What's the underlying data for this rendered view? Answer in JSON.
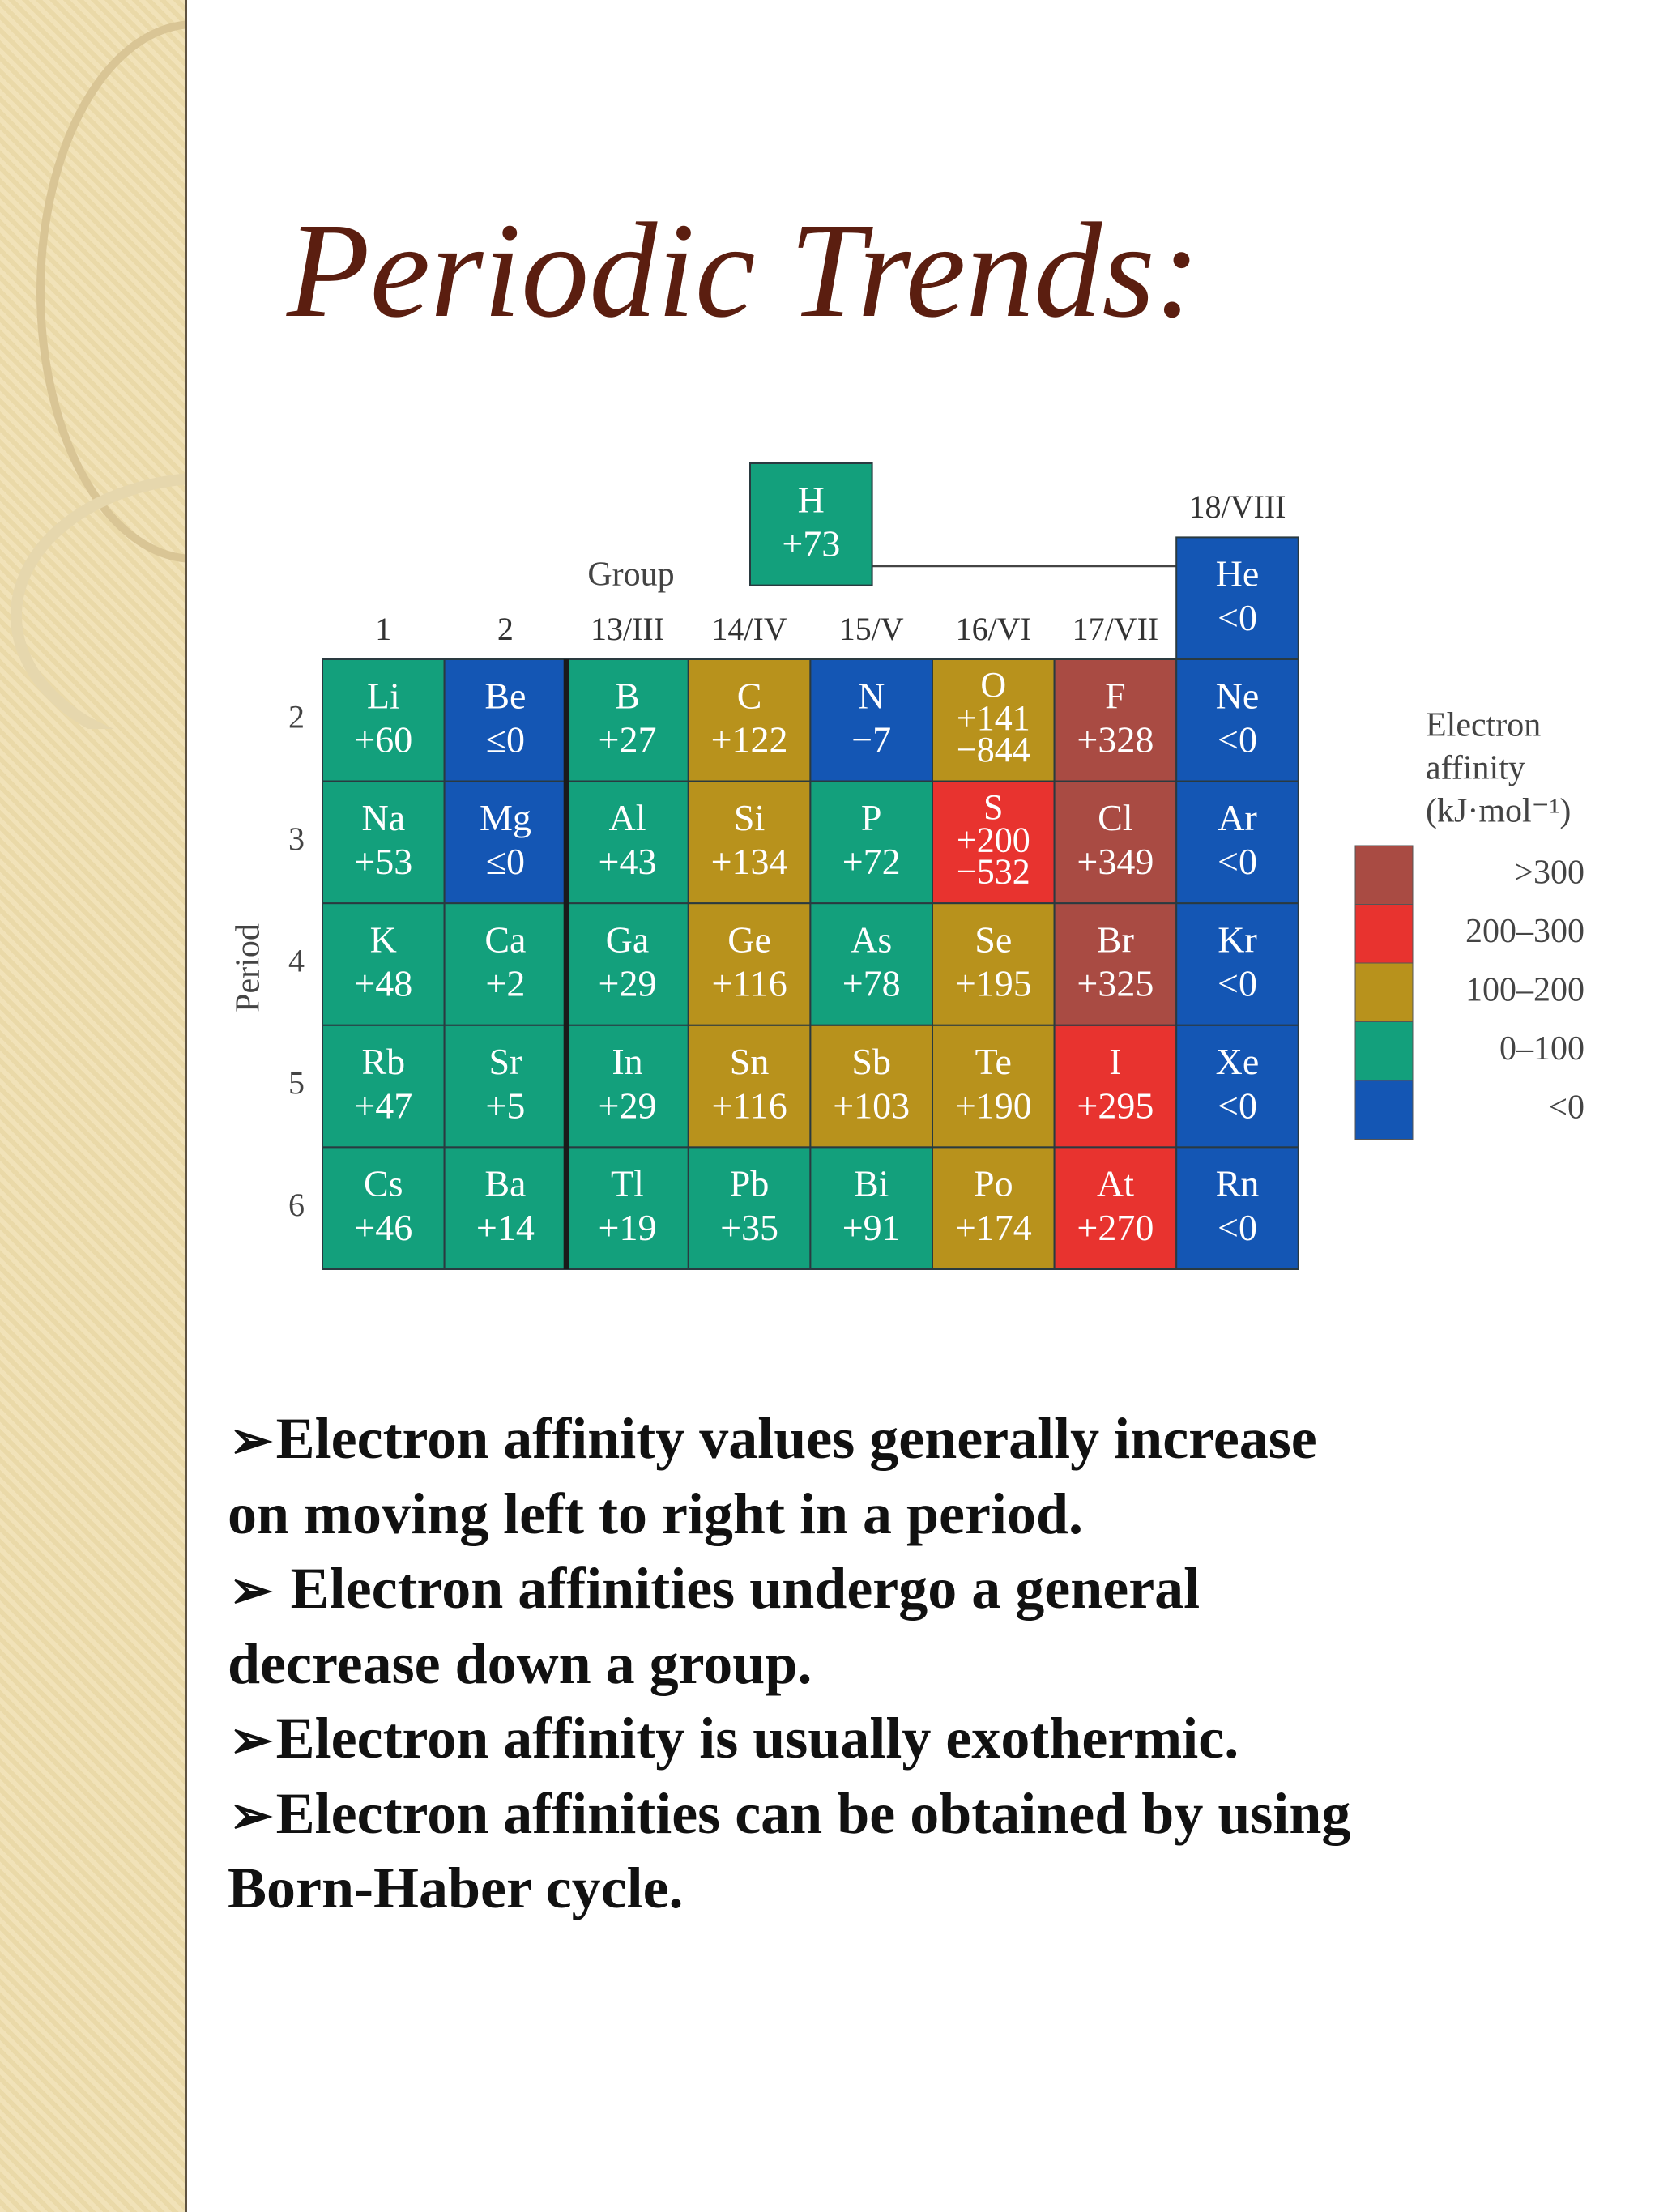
{
  "slide": {
    "title": "Periodic Trends:",
    "table": {
      "group_caption": "Group",
      "period_caption": "Period",
      "groups": [
        "1",
        "2",
        "13/III",
        "14/IV",
        "15/V",
        "16/VI",
        "17/VII",
        "18/VIII"
      ],
      "hydrogen": {
        "symbol": "H",
        "affinity": [
          "+73"
        ],
        "color": "#13a07c"
      },
      "helium": {
        "symbol": "He",
        "affinity": [
          "<0"
        ],
        "color": "#1456b4"
      },
      "periods": [
        {
          "label": "2",
          "cells": [
            {
              "symbol": "Li",
              "affinity": [
                "+60"
              ],
              "color": "#13a07c"
            },
            {
              "symbol": "Be",
              "affinity": [
                "≤0"
              ],
              "color": "#1456b4"
            },
            {
              "symbol": "B",
              "affinity": [
                "+27"
              ],
              "color": "#13a07c"
            },
            {
              "symbol": "C",
              "affinity": [
                "+122"
              ],
              "color": "#b8921c"
            },
            {
              "symbol": "N",
              "affinity": [
                "−7"
              ],
              "color": "#1456b4"
            },
            {
              "symbol": "O",
              "affinity": [
                "+141",
                "−844"
              ],
              "color": "#b8921c"
            },
            {
              "symbol": "F",
              "affinity": [
                "+328"
              ],
              "color": "#a94b43"
            },
            {
              "symbol": "Ne",
              "affinity": [
                "<0"
              ],
              "color": "#1456b4"
            }
          ]
        },
        {
          "label": "3",
          "cells": [
            {
              "symbol": "Na",
              "affinity": [
                "+53"
              ],
              "color": "#13a07c"
            },
            {
              "symbol": "Mg",
              "affinity": [
                "≤0"
              ],
              "color": "#1456b4"
            },
            {
              "symbol": "Al",
              "affinity": [
                "+43"
              ],
              "color": "#13a07c"
            },
            {
              "symbol": "Si",
              "affinity": [
                "+134"
              ],
              "color": "#b8921c"
            },
            {
              "symbol": "P",
              "affinity": [
                "+72"
              ],
              "color": "#13a07c"
            },
            {
              "symbol": "S",
              "affinity": [
                "+200",
                "−532"
              ],
              "color": "#e8332f"
            },
            {
              "symbol": "Cl",
              "affinity": [
                "+349"
              ],
              "color": "#a94b43"
            },
            {
              "symbol": "Ar",
              "affinity": [
                "<0"
              ],
              "color": "#1456b4"
            }
          ]
        },
        {
          "label": "4",
          "cells": [
            {
              "symbol": "K",
              "affinity": [
                "+48"
              ],
              "color": "#13a07c"
            },
            {
              "symbol": "Ca",
              "affinity": [
                "+2"
              ],
              "color": "#13a07c"
            },
            {
              "symbol": "Ga",
              "affinity": [
                "+29"
              ],
              "color": "#13a07c"
            },
            {
              "symbol": "Ge",
              "affinity": [
                "+116"
              ],
              "color": "#b8921c"
            },
            {
              "symbol": "As",
              "affinity": [
                "+78"
              ],
              "color": "#13a07c"
            },
            {
              "symbol": "Se",
              "affinity": [
                "+195"
              ],
              "color": "#b8921c"
            },
            {
              "symbol": "Br",
              "affinity": [
                "+325"
              ],
              "color": "#a94b43"
            },
            {
              "symbol": "Kr",
              "affinity": [
                "<0"
              ],
              "color": "#1456b4"
            }
          ]
        },
        {
          "label": "5",
          "cells": [
            {
              "symbol": "Rb",
              "affinity": [
                "+47"
              ],
              "color": "#13a07c"
            },
            {
              "symbol": "Sr",
              "affinity": [
                "+5"
              ],
              "color": "#13a07c"
            },
            {
              "symbol": "In",
              "affinity": [
                "+29"
              ],
              "color": "#13a07c"
            },
            {
              "symbol": "Sn",
              "affinity": [
                "+116"
              ],
              "color": "#b8921c"
            },
            {
              "symbol": "Sb",
              "affinity": [
                "+103"
              ],
              "color": "#b8921c"
            },
            {
              "symbol": "Te",
              "affinity": [
                "+190"
              ],
              "color": "#b8921c"
            },
            {
              "symbol": "I",
              "affinity": [
                "+295"
              ],
              "color": "#e8332f"
            },
            {
              "symbol": "Xe",
              "affinity": [
                "<0"
              ],
              "color": "#1456b4"
            }
          ]
        },
        {
          "label": "6",
          "cells": [
            {
              "symbol": "Cs",
              "affinity": [
                "+46"
              ],
              "color": "#13a07c"
            },
            {
              "symbol": "Ba",
              "affinity": [
                "+14"
              ],
              "color": "#13a07c"
            },
            {
              "symbol": "Tl",
              "affinity": [
                "+19"
              ],
              "color": "#13a07c"
            },
            {
              "symbol": "Pb",
              "affinity": [
                "+35"
              ],
              "color": "#13a07c"
            },
            {
              "symbol": "Bi",
              "affinity": [
                "+91"
              ],
              "color": "#13a07c"
            },
            {
              "symbol": "Po",
              "affinity": [
                "+174"
              ],
              "color": "#b8921c"
            },
            {
              "symbol": "At",
              "affinity": [
                "+270"
              ],
              "color": "#e8332f"
            },
            {
              "symbol": "Rn",
              "affinity": [
                "<0"
              ],
              "color": "#1456b4"
            }
          ]
        }
      ],
      "legend": {
        "title": [
          "Electron",
          "affinity",
          "(kJ·mol⁻¹)"
        ],
        "entries": [
          {
            "label": ">300",
            "color": "#a94b43"
          },
          {
            "label": "200–300",
            "color": "#e8332f"
          },
          {
            "label": "100–200",
            "color": "#b8921c"
          },
          {
            "label": "0–100",
            "color": "#13a07c"
          },
          {
            "label": "<0",
            "color": "#1456b4"
          }
        ]
      }
    },
    "bullets": [
      [
        "Electron affinity values generally increase",
        "on moving left to right in a period."
      ],
      [
        " Electron affinities undergo a general",
        "decrease down a group."
      ],
      [
        "Electron affinity is usually exothermic."
      ],
      [
        "Electron affinities can be obtained by using",
        "Born-Haber cycle."
      ]
    ]
  }
}
